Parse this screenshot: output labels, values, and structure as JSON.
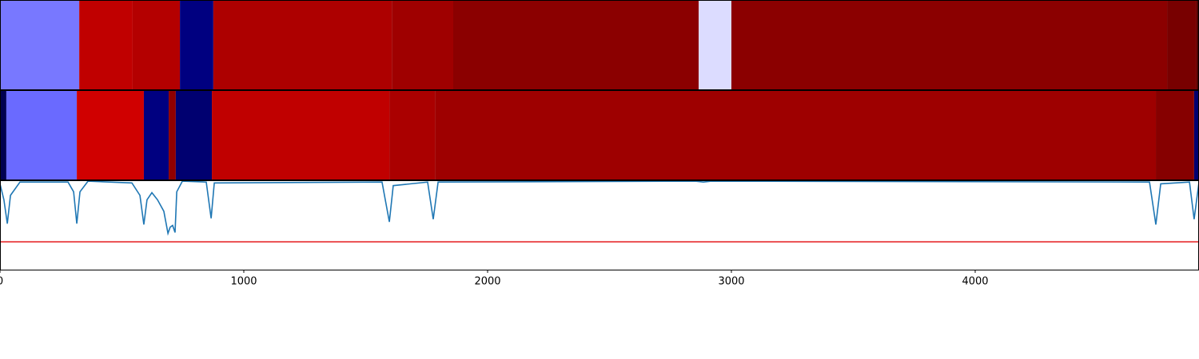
{
  "chart_data": [
    {
      "type": "segments",
      "xlim": [
        0,
        4918
      ],
      "edges": [
        0,
        325,
        544,
        738,
        875,
        1607,
        1859,
        2866,
        3000,
        4787,
        4908,
        4918
      ],
      "colors": [
        "#7878ff",
        "#c00000",
        "#b40000",
        "#000080",
        "#ad0000",
        "#9f0000",
        "#8b0000",
        "#dcdcff",
        "#8b0000",
        "#780000",
        "#500000"
      ]
    },
    {
      "type": "segments",
      "xlim": [
        0,
        4918
      ],
      "edges": [
        0,
        26,
        315,
        590,
        692,
        721,
        869,
        1597,
        1784,
        4741,
        4898,
        4918
      ],
      "colors": [
        "#000050",
        "#6a6aff",
        "#d00000",
        "#000080",
        "#900000",
        "#000070",
        "#c00000",
        "#aa0000",
        "#9e0000",
        "#860000",
        "#000070"
      ]
    },
    {
      "type": "line",
      "xlim": [
        0,
        4918
      ],
      "ylim": [
        0,
        1.01
      ],
      "color": "#1f77b4",
      "xticks": [
        0,
        1000,
        2000,
        3000,
        4000
      ],
      "x": [
        0,
        16,
        30,
        43,
        82,
        279,
        302,
        315,
        328,
        361,
        541,
        574,
        590,
        603,
        623,
        646,
        672,
        689,
        698,
        708,
        718,
        725,
        748,
        846,
        866,
        879,
        1567,
        1597,
        1613,
        1754,
        1777,
        1797,
        2852,
        2885,
        2918,
        4715,
        4741,
        4761,
        4879,
        4898,
        4918
      ],
      "values": [
        0.97,
        0.79,
        0.52,
        0.84,
        0.99,
        0.99,
        0.88,
        0.52,
        0.88,
        1.0,
        0.98,
        0.84,
        0.51,
        0.79,
        0.87,
        0.79,
        0.66,
        0.41,
        0.48,
        0.5,
        0.42,
        0.88,
        1.0,
        0.99,
        0.58,
        0.98,
        0.99,
        0.54,
        0.95,
        0.99,
        0.57,
        0.99,
        1.0,
        0.99,
        1.0,
        0.99,
        0.51,
        0.97,
        0.99,
        0.57,
        0.99
      ],
      "hline": 0.315,
      "hline_color": "#e41a1c"
    }
  ]
}
